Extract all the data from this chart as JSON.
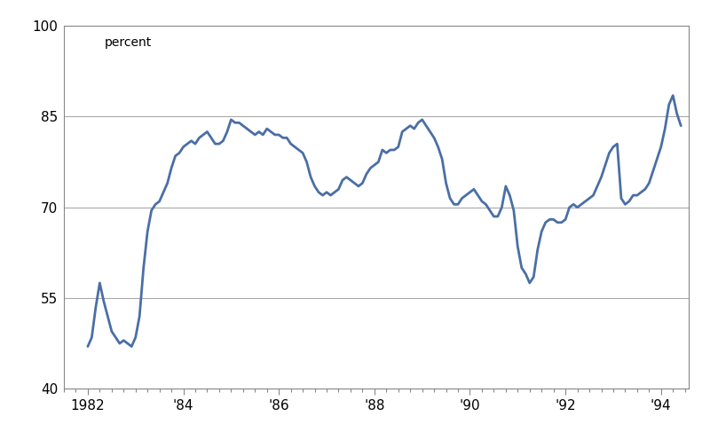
{
  "ylabel": "percent",
  "ylim": [
    40,
    100
  ],
  "yticks": [
    40,
    55,
    70,
    85,
    100
  ],
  "xlim": [
    1981.5,
    1994.58
  ],
  "xticks": [
    1982,
    1984,
    1986,
    1988,
    1990,
    1992,
    1994
  ],
  "xticklabels": [
    "1982",
    "'84",
    "'86",
    "'88",
    "'90",
    "'92",
    "'94"
  ],
  "line_color": "#4a6fa5",
  "line_width": 2.0,
  "background_color": "#ffffff",
  "grid_color": "#aaaaaa",
  "spine_color": "#888888",
  "x": [
    1982.0,
    1982.083,
    1982.167,
    1982.25,
    1982.333,
    1982.417,
    1982.5,
    1982.583,
    1982.667,
    1982.75,
    1982.833,
    1982.917,
    1983.0,
    1983.083,
    1983.167,
    1983.25,
    1983.333,
    1983.417,
    1983.5,
    1983.583,
    1983.667,
    1983.75,
    1983.833,
    1983.917,
    1984.0,
    1984.083,
    1984.167,
    1984.25,
    1984.333,
    1984.417,
    1984.5,
    1984.583,
    1984.667,
    1984.75,
    1984.833,
    1984.917,
    1985.0,
    1985.083,
    1985.167,
    1985.25,
    1985.333,
    1985.417,
    1985.5,
    1985.583,
    1985.667,
    1985.75,
    1985.833,
    1985.917,
    1986.0,
    1986.083,
    1986.167,
    1986.25,
    1986.333,
    1986.417,
    1986.5,
    1986.583,
    1986.667,
    1986.75,
    1986.833,
    1986.917,
    1987.0,
    1987.083,
    1987.167,
    1987.25,
    1987.333,
    1987.417,
    1987.5,
    1987.583,
    1987.667,
    1987.75,
    1987.833,
    1987.917,
    1988.0,
    1988.083,
    1988.167,
    1988.25,
    1988.333,
    1988.417,
    1988.5,
    1988.583,
    1988.667,
    1988.75,
    1988.833,
    1988.917,
    1989.0,
    1989.083,
    1989.167,
    1989.25,
    1989.333,
    1989.417,
    1989.5,
    1989.583,
    1989.667,
    1989.75,
    1989.833,
    1989.917,
    1990.0,
    1990.083,
    1990.167,
    1990.25,
    1990.333,
    1990.417,
    1990.5,
    1990.583,
    1990.667,
    1990.75,
    1990.833,
    1990.917,
    1991.0,
    1991.083,
    1991.167,
    1991.25,
    1991.333,
    1991.417,
    1991.5,
    1991.583,
    1991.667,
    1991.75,
    1991.833,
    1991.917,
    1992.0,
    1992.083,
    1992.167,
    1992.25,
    1992.333,
    1992.417,
    1992.5,
    1992.583,
    1992.667,
    1992.75,
    1992.833,
    1992.917,
    1993.0,
    1993.083,
    1993.167,
    1993.25,
    1993.333,
    1993.417,
    1993.5,
    1993.583,
    1993.667,
    1993.75,
    1993.833,
    1993.917,
    1994.0,
    1994.083,
    1994.167,
    1994.25,
    1994.333,
    1994.417
  ],
  "y": [
    47.0,
    48.5,
    53.5,
    57.5,
    54.5,
    52.0,
    49.5,
    48.5,
    47.5,
    48.0,
    47.5,
    47.0,
    48.5,
    52.0,
    60.0,
    66.0,
    69.5,
    70.5,
    71.0,
    72.5,
    74.0,
    76.5,
    78.5,
    79.0,
    80.0,
    80.5,
    81.0,
    80.5,
    81.5,
    82.0,
    82.5,
    81.5,
    80.5,
    80.5,
    81.0,
    82.5,
    84.5,
    84.0,
    84.0,
    83.5,
    83.0,
    82.5,
    82.0,
    82.5,
    82.0,
    83.0,
    82.5,
    82.0,
    82.0,
    81.5,
    81.5,
    80.5,
    80.0,
    79.5,
    79.0,
    77.5,
    75.0,
    73.5,
    72.5,
    72.0,
    72.5,
    72.0,
    72.5,
    73.0,
    74.5,
    75.0,
    74.5,
    74.0,
    73.5,
    74.0,
    75.5,
    76.5,
    77.0,
    77.5,
    79.5,
    79.0,
    79.5,
    79.5,
    80.0,
    82.5,
    83.0,
    83.5,
    83.0,
    84.0,
    84.5,
    83.5,
    82.5,
    81.5,
    80.0,
    78.0,
    74.0,
    71.5,
    70.5,
    70.5,
    71.5,
    72.0,
    72.5,
    73.0,
    72.0,
    71.0,
    70.5,
    69.5,
    68.5,
    68.5,
    70.0,
    73.5,
    72.0,
    69.5,
    63.5,
    60.0,
    59.0,
    57.5,
    58.5,
    63.0,
    66.0,
    67.5,
    68.0,
    68.0,
    67.5,
    67.5,
    68.0,
    70.0,
    70.5,
    70.0,
    70.5,
    71.0,
    71.5,
    72.0,
    73.5,
    75.0,
    77.0,
    79.0,
    80.0,
    80.5,
    71.5,
    70.5,
    71.0,
    72.0,
    72.0,
    72.5,
    73.0,
    74.0,
    76.0,
    78.0,
    80.0,
    83.0,
    87.0,
    88.5,
    85.5,
    83.5
  ]
}
